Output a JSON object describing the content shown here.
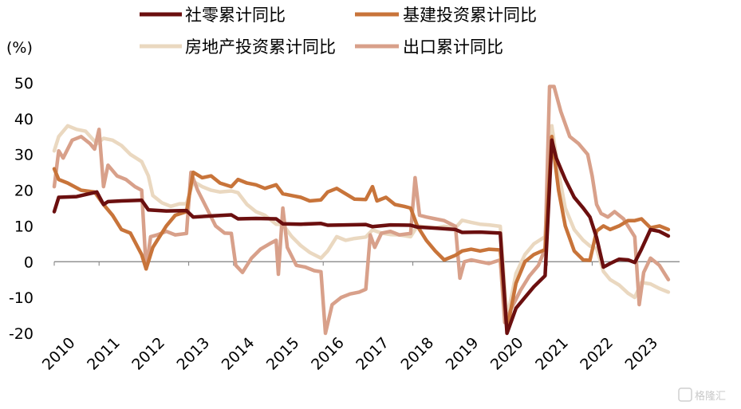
{
  "chart_data": {
    "type": "line",
    "title": "",
    "ylabel": "(%)",
    "xlabel": "",
    "ylim": [
      -20,
      50
    ],
    "yticks": [
      50,
      40,
      30,
      20,
      10,
      0,
      -10,
      -20
    ],
    "xlim": [
      2010,
      2023.95
    ],
    "xticks": [
      "2010",
      "2011",
      "2012",
      "2013",
      "2014",
      "2015",
      "2016",
      "2017",
      "2018",
      "2019",
      "2020",
      "2021",
      "2022",
      "2023"
    ],
    "legend_position": "top",
    "series": [
      {
        "name": "社零累计同比",
        "color": "#6b0f0f",
        "points": [
          [
            2010.0,
            14
          ],
          [
            2010.1,
            18
          ],
          [
            2010.5,
            18.2
          ],
          [
            2010.95,
            19.5
          ],
          [
            2011.1,
            16
          ],
          [
            2011.2,
            16.8
          ],
          [
            2011.5,
            17
          ],
          [
            2011.95,
            17.2
          ],
          [
            2012.1,
            14.5
          ],
          [
            2012.5,
            14.2
          ],
          [
            2012.95,
            14.3
          ],
          [
            2013.1,
            12.5
          ],
          [
            2013.5,
            12.8
          ],
          [
            2013.95,
            13.1
          ],
          [
            2014.1,
            12
          ],
          [
            2014.5,
            12.1
          ],
          [
            2014.95,
            12
          ],
          [
            2015.1,
            10.6
          ],
          [
            2015.5,
            10.5
          ],
          [
            2015.95,
            10.7
          ],
          [
            2016.1,
            10.2
          ],
          [
            2016.5,
            10.3
          ],
          [
            2016.95,
            10.4
          ],
          [
            2017.1,
            9.8
          ],
          [
            2017.5,
            10.3
          ],
          [
            2017.95,
            10.2
          ],
          [
            2018.1,
            9.7
          ],
          [
            2018.5,
            9.4
          ],
          [
            2018.95,
            9
          ],
          [
            2019.1,
            8.2
          ],
          [
            2019.5,
            8.3
          ],
          [
            2019.95,
            8
          ],
          [
            2020.1,
            -20
          ],
          [
            2020.3,
            -13
          ],
          [
            2020.5,
            -10
          ],
          [
            2020.7,
            -7
          ],
          [
            2020.95,
            -3.9
          ],
          [
            2021.1,
            34
          ],
          [
            2021.2,
            29
          ],
          [
            2021.4,
            23
          ],
          [
            2021.6,
            18
          ],
          [
            2021.8,
            15
          ],
          [
            2021.95,
            12.5
          ],
          [
            2022.1,
            6.7
          ],
          [
            2022.25,
            -1.5
          ],
          [
            2022.4,
            -0.5
          ],
          [
            2022.6,
            0.7
          ],
          [
            2022.8,
            0.5
          ],
          [
            2022.95,
            -0.2
          ],
          [
            2023.1,
            3.5
          ],
          [
            2023.3,
            9
          ],
          [
            2023.5,
            8.5
          ],
          [
            2023.7,
            7.2
          ]
        ]
      },
      {
        "name": "基建投资累计同比",
        "color": "#c8743a",
        "points": [
          [
            2010.0,
            26
          ],
          [
            2010.1,
            23
          ],
          [
            2010.3,
            22
          ],
          [
            2010.6,
            20
          ],
          [
            2010.9,
            19.5
          ],
          [
            2011.1,
            16
          ],
          [
            2011.3,
            13
          ],
          [
            2011.5,
            9
          ],
          [
            2011.7,
            8
          ],
          [
            2011.95,
            2
          ],
          [
            2012.05,
            -2
          ],
          [
            2012.2,
            4
          ],
          [
            2012.5,
            10
          ],
          [
            2012.7,
            13
          ],
          [
            2012.95,
            14
          ],
          [
            2013.1,
            25
          ],
          [
            2013.3,
            23.5
          ],
          [
            2013.5,
            24
          ],
          [
            2013.7,
            22
          ],
          [
            2013.95,
            21
          ],
          [
            2014.1,
            23
          ],
          [
            2014.3,
            22
          ],
          [
            2014.5,
            21.5
          ],
          [
            2014.7,
            20.5
          ],
          [
            2014.95,
            21.5
          ],
          [
            2015.1,
            19
          ],
          [
            2015.3,
            18.5
          ],
          [
            2015.5,
            18
          ],
          [
            2015.7,
            17
          ],
          [
            2015.95,
            17.3
          ],
          [
            2016.1,
            19.5
          ],
          [
            2016.3,
            20.5
          ],
          [
            2016.5,
            19
          ],
          [
            2016.7,
            17.5
          ],
          [
            2016.95,
            17.4
          ],
          [
            2017.1,
            21
          ],
          [
            2017.2,
            17
          ],
          [
            2017.4,
            18
          ],
          [
            2017.6,
            16
          ],
          [
            2017.8,
            15.5
          ],
          [
            2017.95,
            15
          ],
          [
            2018.1,
            10
          ],
          [
            2018.3,
            6
          ],
          [
            2018.5,
            3
          ],
          [
            2018.7,
            0.5
          ],
          [
            2018.95,
            1.8
          ],
          [
            2019.1,
            3
          ],
          [
            2019.3,
            3.5
          ],
          [
            2019.5,
            3
          ],
          [
            2019.7,
            3.5
          ],
          [
            2019.95,
            3.3
          ],
          [
            2020.1,
            -19
          ],
          [
            2020.3,
            -6
          ],
          [
            2020.5,
            0
          ],
          [
            2020.7,
            2
          ],
          [
            2020.95,
            3.4
          ],
          [
            2021.1,
            35
          ],
          [
            2021.25,
            20
          ],
          [
            2021.4,
            10
          ],
          [
            2021.6,
            3
          ],
          [
            2021.8,
            0.5
          ],
          [
            2021.95,
            0.4
          ],
          [
            2022.1,
            8.6
          ],
          [
            2022.25,
            10
          ],
          [
            2022.4,
            9
          ],
          [
            2022.6,
            10
          ],
          [
            2022.8,
            11.5
          ],
          [
            2022.95,
            11.5
          ],
          [
            2023.1,
            12
          ],
          [
            2023.3,
            9.5
          ],
          [
            2023.5,
            10
          ],
          [
            2023.7,
            9
          ]
        ]
      },
      {
        "name": "房地产投资累计同比",
        "color": "#ead8c0",
        "points": [
          [
            2010.0,
            31
          ],
          [
            2010.1,
            35
          ],
          [
            2010.3,
            38
          ],
          [
            2010.5,
            37
          ],
          [
            2010.7,
            36.5
          ],
          [
            2010.95,
            33
          ],
          [
            2011.1,
            34.5
          ],
          [
            2011.3,
            34
          ],
          [
            2011.5,
            32.5
          ],
          [
            2011.7,
            30
          ],
          [
            2011.95,
            28
          ],
          [
            2012.1,
            24
          ],
          [
            2012.2,
            18.5
          ],
          [
            2012.4,
            16.5
          ],
          [
            2012.6,
            15.5
          ],
          [
            2012.8,
            16.2
          ],
          [
            2012.95,
            16.2
          ],
          [
            2013.1,
            22.5
          ],
          [
            2013.3,
            21
          ],
          [
            2013.5,
            20
          ],
          [
            2013.7,
            19.5
          ],
          [
            2013.95,
            19.8
          ],
          [
            2014.1,
            19.3
          ],
          [
            2014.3,
            16
          ],
          [
            2014.5,
            14
          ],
          [
            2014.7,
            13
          ],
          [
            2014.95,
            10.5
          ],
          [
            2015.1,
            10.4
          ],
          [
            2015.3,
            7
          ],
          [
            2015.5,
            4.5
          ],
          [
            2015.7,
            2.6
          ],
          [
            2015.95,
            1
          ],
          [
            2016.1,
            3
          ],
          [
            2016.3,
            7
          ],
          [
            2016.5,
            6
          ],
          [
            2016.7,
            6.5
          ],
          [
            2016.95,
            6.9
          ],
          [
            2017.1,
            8.9
          ],
          [
            2017.3,
            8
          ],
          [
            2017.5,
            7.6
          ],
          [
            2017.7,
            7.5
          ],
          [
            2017.95,
            7
          ],
          [
            2018.1,
            10
          ],
          [
            2018.3,
            9.7
          ],
          [
            2018.5,
            9.5
          ],
          [
            2018.7,
            9.9
          ],
          [
            2018.95,
            9.5
          ],
          [
            2019.1,
            11.6
          ],
          [
            2019.3,
            11
          ],
          [
            2019.5,
            10.5
          ],
          [
            2019.7,
            10.3
          ],
          [
            2019.95,
            9.9
          ],
          [
            2020.1,
            -16
          ],
          [
            2020.3,
            -3.3
          ],
          [
            2020.5,
            2
          ],
          [
            2020.7,
            5
          ],
          [
            2020.95,
            7
          ],
          [
            2021.1,
            38
          ],
          [
            2021.25,
            25
          ],
          [
            2021.4,
            15
          ],
          [
            2021.6,
            9
          ],
          [
            2021.8,
            6
          ],
          [
            2021.95,
            4.4
          ],
          [
            2022.1,
            3.7
          ],
          [
            2022.25,
            -2.7
          ],
          [
            2022.4,
            -5
          ],
          [
            2022.6,
            -6.5
          ],
          [
            2022.8,
            -8.8
          ],
          [
            2022.95,
            -10
          ],
          [
            2023.1,
            -5.8
          ],
          [
            2023.3,
            -6.2
          ],
          [
            2023.5,
            -7.5
          ],
          [
            2023.7,
            -8.5
          ]
        ]
      },
      {
        "name": "出口累计同比",
        "color": "#d8a08a",
        "points": [
          [
            2010.0,
            21
          ],
          [
            2010.1,
            31
          ],
          [
            2010.2,
            29
          ],
          [
            2010.4,
            34
          ],
          [
            2010.6,
            35
          ],
          [
            2010.8,
            33
          ],
          [
            2010.9,
            31.5
          ],
          [
            2011.0,
            37
          ],
          [
            2011.1,
            21
          ],
          [
            2011.2,
            27
          ],
          [
            2011.4,
            24
          ],
          [
            2011.6,
            23
          ],
          [
            2011.8,
            21
          ],
          [
            2011.95,
            20
          ],
          [
            2012.05,
            -2
          ],
          [
            2012.15,
            7
          ],
          [
            2012.3,
            7.5
          ],
          [
            2012.5,
            8.5
          ],
          [
            2012.7,
            7.5
          ],
          [
            2012.95,
            7.9
          ],
          [
            2013.05,
            25
          ],
          [
            2013.2,
            20
          ],
          [
            2013.4,
            15
          ],
          [
            2013.6,
            10
          ],
          [
            2013.8,
            8
          ],
          [
            2013.95,
            7.9
          ],
          [
            2014.05,
            -1
          ],
          [
            2014.2,
            -3
          ],
          [
            2014.4,
            1
          ],
          [
            2014.6,
            3.5
          ],
          [
            2014.8,
            5
          ],
          [
            2014.95,
            6
          ],
          [
            2015.0,
            -3.5
          ],
          [
            2015.1,
            15
          ],
          [
            2015.2,
            4
          ],
          [
            2015.4,
            -1
          ],
          [
            2015.6,
            -1.5
          ],
          [
            2015.8,
            -2.5
          ],
          [
            2015.95,
            -2.8
          ],
          [
            2016.05,
            -20
          ],
          [
            2016.2,
            -12
          ],
          [
            2016.4,
            -10
          ],
          [
            2016.6,
            -9
          ],
          [
            2016.8,
            -8.5
          ],
          [
            2016.95,
            -7.7
          ],
          [
            2017.05,
            7.5
          ],
          [
            2017.15,
            4
          ],
          [
            2017.3,
            8
          ],
          [
            2017.5,
            8.5
          ],
          [
            2017.7,
            7.5
          ],
          [
            2017.95,
            7.9
          ],
          [
            2018.05,
            23.5
          ],
          [
            2018.15,
            13
          ],
          [
            2018.3,
            12.5
          ],
          [
            2018.5,
            12
          ],
          [
            2018.7,
            11.5
          ],
          [
            2018.95,
            9.9
          ],
          [
            2019.05,
            -4.6
          ],
          [
            2019.15,
            0
          ],
          [
            2019.3,
            0.5
          ],
          [
            2019.5,
            0
          ],
          [
            2019.7,
            -0.5
          ],
          [
            2019.95,
            0.5
          ],
          [
            2020.05,
            -17
          ],
          [
            2020.2,
            -13
          ],
          [
            2020.4,
            -8
          ],
          [
            2020.6,
            -4
          ],
          [
            2020.8,
            -1
          ],
          [
            2020.95,
            3.6
          ],
          [
            2021.05,
            49
          ],
          [
            2021.15,
            49
          ],
          [
            2021.3,
            42
          ],
          [
            2021.5,
            35
          ],
          [
            2021.7,
            33
          ],
          [
            2021.9,
            30
          ],
          [
            2022.0,
            24
          ],
          [
            2022.1,
            16
          ],
          [
            2022.2,
            13.5
          ],
          [
            2022.35,
            12.5
          ],
          [
            2022.5,
            14
          ],
          [
            2022.7,
            12
          ],
          [
            2022.95,
            7
          ],
          [
            2023.05,
            -12
          ],
          [
            2023.15,
            -3
          ],
          [
            2023.3,
            1
          ],
          [
            2023.5,
            -1
          ],
          [
            2023.7,
            -5
          ]
        ]
      }
    ],
    "watermark": "格隆汇"
  }
}
